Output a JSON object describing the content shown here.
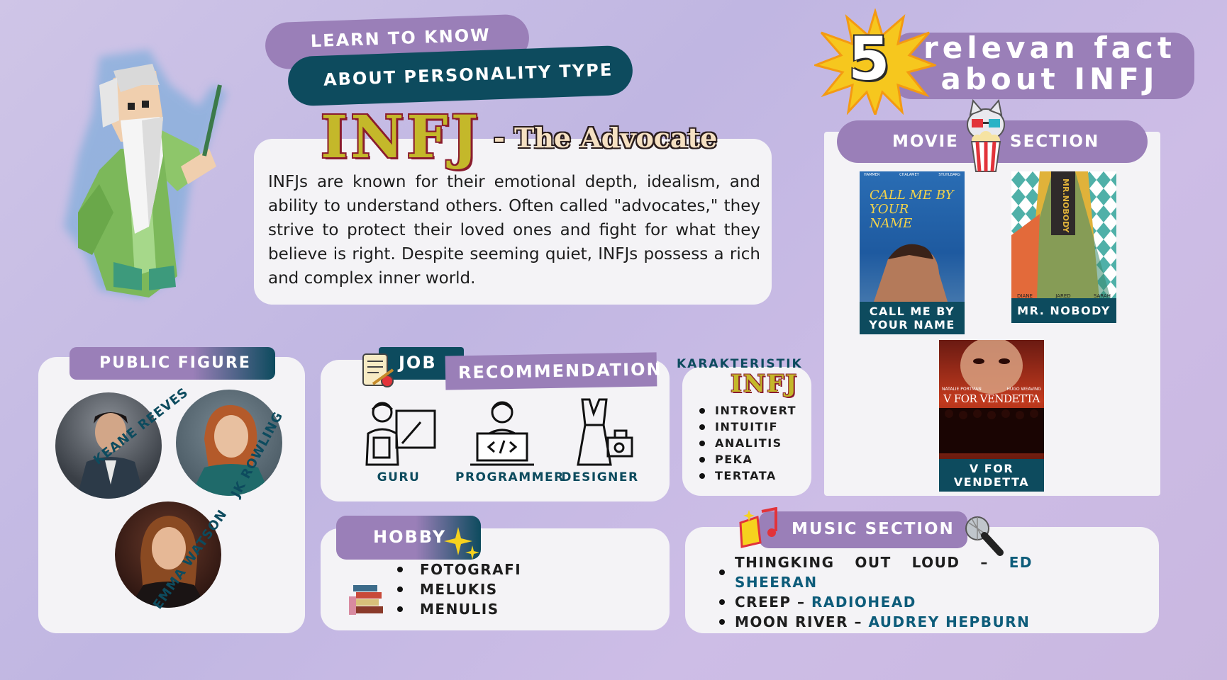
{
  "header": {
    "learn": "LEARN TO KNOW",
    "about": "ABOUT PERSONALITY TYPE",
    "type": "INFJ",
    "nickname": "- The Advocate"
  },
  "intro": "INFJs are known for their emotional depth, idealism, and ability to understand others. Often called \"advocates,\" they strive to protect their loved ones and fight for what they believe is right. Despite seeming quiet, INFJs possess a rich and complex inner world.",
  "facts": {
    "number": "5",
    "line1": "relevan fact",
    "line2": "about INFJ"
  },
  "movie_section": {
    "left": "MOVIE",
    "right": "SECTION",
    "movies": [
      {
        "label_1": "CALL ME BY",
        "label_2": "YOUR NAME",
        "poster_text": "CALL ME BY YOUR NAME",
        "credits": [
          "HAMMER",
          "CHALAMET",
          "STUHLBARG"
        ]
      },
      {
        "label_1": "MR. NOBODY",
        "poster_text": "MR.NOBODY",
        "credits": [
          "DIANE",
          "JARED",
          "SARAH"
        ]
      },
      {
        "label_1": "V FOR",
        "label_2": "VENDETTA",
        "poster_text": "V FOR VENDETTA",
        "credits": [
          "NATALIE PORTMAN",
          "HUGO WEAVING"
        ]
      }
    ]
  },
  "public_figure": {
    "title": "PUBLIC FIGURE",
    "people": [
      "KEANE REEVES",
      "JK ROWLING",
      "EMMA WATSON"
    ]
  },
  "job": {
    "title_a": "JOB",
    "title_b": "RECOMMENDATION",
    "items": [
      "GURU",
      "PROGRAMMER",
      "DESIGNER"
    ]
  },
  "karakteristik": {
    "title": "KARAKTERISTIK",
    "type": "INFJ",
    "items": [
      "INTROVERT",
      "INTUITIF",
      "ANALITIS",
      "PEKA",
      "TERTATA"
    ]
  },
  "hobby": {
    "title": "HOBBY",
    "items": [
      "FOTOGRAFI",
      "MELUKIS",
      "MENULIS"
    ]
  },
  "music": {
    "title": "MUSIC SECTION",
    "songs": [
      {
        "song": "THINGKING OUT LOUD",
        "sep": " – ",
        "artist": "ED SHEERAN"
      },
      {
        "song": "CREEP",
        "sep": " – ",
        "artist": "RADIOHEAD"
      },
      {
        "song": "MOON RIVER",
        "sep": " – ",
        "artist": "AUDREY HEPBURN"
      }
    ]
  },
  "colors": {
    "accent_purple": "#9a7fb8",
    "accent_dark": "#0d4b5e",
    "gold": "#c4b82a",
    "maroon": "#8a1c2e"
  }
}
